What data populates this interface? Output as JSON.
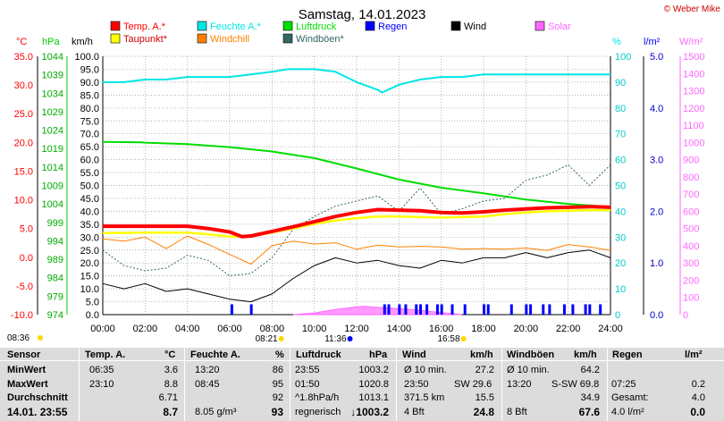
{
  "title": "Samstag, 14.01.2023",
  "author": "© Weber Mike",
  "legend": [
    {
      "label": "Temp. A.*",
      "color": "#ff0000"
    },
    {
      "label": "Feuchte A.*",
      "color": "#00e6e6"
    },
    {
      "label": "Luftdruck",
      "color": "#00dd00"
    },
    {
      "label": "Regen",
      "color": "#0000ff"
    },
    {
      "label": "Wind",
      "color": "#000000"
    },
    {
      "label": "Solar",
      "color": "#ff66ff"
    },
    {
      "label": "Taupunkt*",
      "color": "#ffff00"
    },
    {
      "label": "Windchill",
      "color": "#ff8000"
    },
    {
      "label": "Windböen*",
      "color": "#336666"
    }
  ],
  "axis_units": {
    "temp": "°C",
    "press": "hPa",
    "wind": "km/h",
    "hum": "%",
    "rain": "l/m²",
    "solar": "W/m²"
  },
  "event_markers": [
    {
      "time": "08:36",
      "kind": "sunrise"
    },
    {
      "time": "08:21",
      "kind": "sunrise-local"
    },
    {
      "time": "11:36",
      "kind": "noon"
    },
    {
      "time": "16:58",
      "kind": "sunset"
    }
  ],
  "chart_data": {
    "type": "line",
    "x": {
      "label": "",
      "range": [
        "00:00",
        "24:00"
      ],
      "ticks": [
        "00:00",
        "02:00",
        "04:00",
        "06:00",
        "08:00",
        "10:00",
        "12:00",
        "14:00",
        "16:00",
        "18:00",
        "20:00",
        "22:00",
        "24:00"
      ]
    },
    "axes": {
      "temp": {
        "unit": "°C",
        "range": [
          -10,
          35
        ],
        "ticks": [
          "35.0",
          "30.0",
          "25.0",
          "20.0",
          "15.0",
          "10.0",
          "5.0",
          "0.0",
          "-5.0",
          "-10.0"
        ]
      },
      "pressure": {
        "unit": "hPa",
        "range": [
          974,
          1044
        ],
        "ticks": [
          "1044",
          "1039",
          "1034",
          "1029",
          "1024",
          "1019",
          "1014",
          "1009",
          "1004",
          "999",
          "994",
          "989",
          "984",
          "979",
          "974"
        ]
      },
      "wind": {
        "unit": "km/h",
        "range": [
          0,
          100
        ],
        "ticks": [
          "100.0",
          "95.0",
          "90.0",
          "85.0",
          "80.0",
          "75.0",
          "70.0",
          "65.0",
          "60.0",
          "55.0",
          "50.0",
          "45.0",
          "40.0",
          "35.0",
          "30.0",
          "25.0",
          "20.0",
          "15.0",
          "10.0",
          "5.0",
          "0.0"
        ]
      },
      "humidity": {
        "unit": "%",
        "range": [
          0,
          100
        ],
        "ticks": [
          "100",
          "90",
          "80",
          "70",
          "60",
          "50",
          "40",
          "30",
          "20",
          "10",
          "0"
        ]
      },
      "rain": {
        "unit": "l/m²",
        "range": [
          0,
          5
        ],
        "ticks": [
          "5.0",
          "4.0",
          "3.0",
          "2.0",
          "1.0",
          "0.0"
        ]
      },
      "solar": {
        "unit": "W/m²",
        "range": [
          0,
          1500
        ],
        "ticks": [
          "1500",
          "1400",
          "1300",
          "1200",
          "1100",
          "1000",
          "900",
          "800",
          "700",
          "600",
          "500",
          "400",
          "300",
          "200",
          "100",
          "0"
        ]
      }
    },
    "series": [
      {
        "name": "Temp. A.*",
        "axis": "temp",
        "x": [
          0,
          2,
          4,
          5,
          6,
          6.58,
          7,
          8,
          9,
          10,
          11,
          12,
          13,
          14,
          15,
          16,
          17,
          18,
          19,
          20,
          21,
          22,
          23,
          23.17,
          24
        ],
        "y": [
          5.4,
          5.4,
          5.4,
          5,
          4.4,
          3.6,
          3.7,
          4.5,
          5.3,
          6.2,
          7.1,
          7.8,
          8.3,
          8.2,
          8.1,
          7.8,
          7.7,
          7.9,
          8.2,
          8.4,
          8.6,
          8.7,
          8.8,
          8.8,
          8.7
        ]
      },
      {
        "name": "Taupunkt*",
        "axis": "temp",
        "x": [
          0,
          2,
          4,
          5,
          6,
          7,
          8,
          9,
          10,
          11,
          12,
          13,
          14,
          15,
          16,
          17,
          18,
          19,
          20,
          21,
          22,
          23,
          24
        ],
        "y": [
          4.2,
          4.3,
          4.3,
          4,
          3.6,
          3.6,
          4.3,
          5,
          5.8,
          6.4,
          6.8,
          7.1,
          7.1,
          7,
          6.9,
          7,
          7.1,
          7.5,
          7.8,
          8,
          8.1,
          8.2,
          8.2
        ]
      },
      {
        "name": "Feuchte A.*",
        "axis": "humidity",
        "x": [
          0,
          1,
          2,
          3,
          4,
          5,
          6,
          7,
          8,
          8.75,
          9,
          10,
          11,
          12,
          13,
          13.2,
          14,
          15,
          16,
          17,
          18,
          19,
          20,
          21,
          22,
          23,
          24
        ],
        "y": [
          90,
          90,
          91,
          91,
          92,
          92,
          92,
          93,
          94,
          95,
          95,
          95,
          94,
          90,
          87,
          86,
          89,
          91,
          92,
          92,
          93,
          93,
          93,
          93,
          93,
          93,
          93
        ]
      },
      {
        "name": "Luftdruck",
        "axis": "pressure",
        "x": [
          0,
          1.83,
          2,
          4,
          6,
          8,
          10,
          12,
          14,
          16,
          18,
          20,
          22,
          23.92,
          24
        ],
        "y": [
          1020.8,
          1020.7,
          1020.6,
          1020.2,
          1019.4,
          1018.2,
          1016.4,
          1013.6,
          1010.6,
          1008.4,
          1006.9,
          1005.2,
          1004.0,
          1003.2,
          1003.2
        ]
      },
      {
        "name": "Wind",
        "axis": "wind",
        "x": [
          0,
          1,
          2,
          3,
          4,
          5,
          6,
          7,
          8,
          9,
          10,
          11,
          12,
          13,
          14,
          15,
          16,
          17,
          18,
          19,
          20,
          21,
          22,
          23,
          24
        ],
        "y": [
          12,
          10,
          12,
          9,
          10,
          8,
          6,
          5,
          8,
          14,
          19,
          22,
          20,
          21,
          19,
          18,
          21,
          20,
          22,
          22,
          24,
          22,
          24,
          25,
          22
        ]
      },
      {
        "name": "Windchill",
        "axis": "temp",
        "x": [
          0,
          1,
          2,
          3,
          4,
          5,
          6,
          7,
          8,
          9,
          10,
          11,
          12,
          13,
          14,
          15,
          16,
          17,
          18,
          19,
          20,
          21,
          22,
          23,
          24
        ],
        "y": [
          3.2,
          2.8,
          3.5,
          1.5,
          3.7,
          2.2,
          0.5,
          -1.2,
          2,
          2.8,
          2.3,
          2.5,
          1.4,
          2.1,
          1.8,
          1.9,
          1.8,
          1.4,
          1.5,
          1.4,
          1.6,
          1.2,
          2.2,
          1.8,
          1.2
        ]
      },
      {
        "name": "Windböen*",
        "axis": "wind",
        "x": [
          0,
          1,
          2,
          3,
          4,
          5,
          6,
          7,
          8,
          9,
          10,
          11,
          12,
          13,
          14,
          15,
          16,
          17,
          18,
          19,
          20,
          21,
          22,
          23,
          24
        ],
        "y": [
          25,
          19,
          17,
          18,
          23,
          21,
          15,
          16,
          22,
          33,
          38,
          42,
          44,
          46,
          40,
          49,
          39,
          41,
          44,
          45,
          52,
          54,
          58,
          50,
          58
        ]
      }
    ],
    "rain_events": [
      6.08,
      7,
      13.3,
      13.5,
      14,
      14.3,
      14.8,
      15,
      15.3,
      15.8,
      16,
      16.5,
      17.1,
      18,
      18.2,
      19.3,
      20,
      20.2,
      20.8,
      21.1,
      21.8,
      22.2,
      22.8,
      23,
      23.5
    ],
    "solar_curve": {
      "x": [
        9,
        10,
        11,
        12,
        12.3,
        13,
        14,
        15,
        16,
        16.97
      ],
      "y": [
        0,
        10,
        30,
        45,
        48,
        42,
        35,
        25,
        12,
        0
      ]
    }
  },
  "stats": {
    "headers": [
      "Sensor",
      "Temp. A.",
      "°C",
      "Feuchte A.",
      "%",
      "Luftdruck",
      "hPa",
      "Wind",
      "km/h",
      "Windböen",
      "km/h",
      "Regen",
      "l/m²"
    ],
    "rows": [
      {
        "label": "MinWert",
        "t_time": "06:35",
        "t_val": "3.6",
        "h_time": "13:20",
        "h_val": "86",
        "p_time": "23:55",
        "p_val": "1003.2",
        "w_time": "Ø 10 min.",
        "w_val": "27.2",
        "g_time": "Ø 10 min.",
        "g_val": "64.2",
        "r_time": "",
        "r_val": ""
      },
      {
        "label": "MaxWert",
        "t_time": "23:10",
        "t_val": "8.8",
        "h_time": "08:45",
        "h_val": "95",
        "p_time": "01:50",
        "p_val": "1020.8",
        "w_time": "23:50",
        "w_dir": "SW 29.6",
        "w_val": "",
        "g_time": "13:20",
        "g_dir": "S-SW 69.8",
        "g_val": "",
        "r_time": "07:25",
        "r_val": "0.2"
      },
      {
        "label": "Durchschnitt",
        "t_time": "",
        "t_val": "6.71",
        "h_time": "",
        "h_val": "92",
        "p_time": "^1.8hPa/h",
        "p_val": "1013.1",
        "w_time": "371.5 km",
        "w_val": "15.5",
        "g_time": "",
        "g_val": "34.9",
        "r_time": "Gesamt:",
        "r_val": "4.0"
      },
      {
        "label": "14.01. 23:55",
        "t_time": "",
        "t_val": "8.7",
        "h_time": "8.05 g/m³",
        "h_val": "93",
        "p_time": "regnerisch",
        "p_val": "↓1003.2",
        "w_time": "4 Bft",
        "w_val": "24.8",
        "g_time": "8 Bft",
        "g_val": "67.6",
        "r_time": "4.0 l/m²",
        "r_val": "0.0"
      }
    ]
  }
}
